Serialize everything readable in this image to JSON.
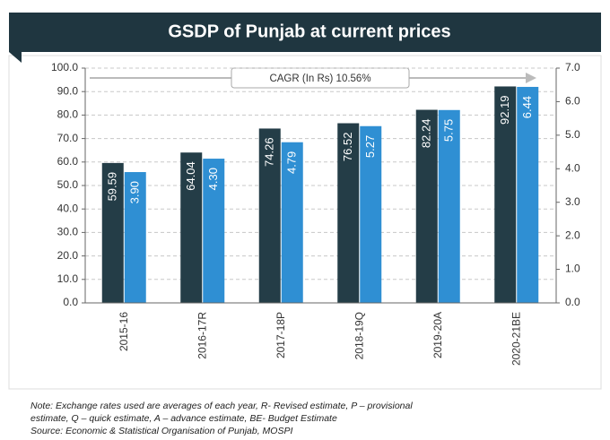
{
  "chart_data": {
    "type": "bar",
    "title": "GSDP of Punjab at current prices",
    "categories": [
      "2015-16",
      "2016-17R",
      "2017-18P",
      "2018-19Q",
      "2019-20A",
      "2020-21BE"
    ],
    "series": [
      {
        "color": "#243d47",
        "values": [
          59.59,
          64.04,
          74.26,
          76.52,
          82.24,
          92.19
        ]
      },
      {
        "color": "#2f8fd3",
        "axis": "y2",
        "values": [
          3.9,
          4.3,
          4.79,
          5.27,
          5.75,
          6.44
        ],
        "value_labels": [
          "3.90",
          "4.30",
          "4.79",
          "5.27",
          "5.75",
          "6.44"
        ]
      }
    ],
    "ylim": [
      0,
      100
    ],
    "yticks": [
      {
        "value": 0,
        "label": "0.0"
      },
      {
        "value": 10,
        "label": "10.0"
      },
      {
        "value": 20,
        "label": "20.0"
      },
      {
        "value": 30,
        "label": "30.0"
      },
      {
        "value": 40,
        "label": "40.0"
      },
      {
        "value": 50,
        "label": "50.0"
      },
      {
        "value": 60,
        "label": "60.0"
      },
      {
        "value": 70,
        "label": "70.0"
      },
      {
        "value": 80,
        "label": "80.0"
      },
      {
        "value": 90,
        "label": "90.0"
      },
      {
        "value": 100,
        "label": "100.0"
      }
    ],
    "y2lim": [
      0,
      7
    ],
    "y2ticks": [
      {
        "value": 0,
        "label": "0.0"
      },
      {
        "value": 1,
        "label": "1.0"
      },
      {
        "value": 2,
        "label": "2.0"
      },
      {
        "value": 3,
        "label": "3.0"
      },
      {
        "value": 4,
        "label": "4.0"
      },
      {
        "value": 5,
        "label": "5.0"
      },
      {
        "value": 6,
        "label": "6.0"
      },
      {
        "value": 7,
        "label": "7.0"
      }
    ],
    "grid": true,
    "annotation": "CAGR (In Rs) 10.56%",
    "note": "Note: Exchange rates used are averages of each year, R- Revised estimate, P – provisional",
    "note2": "estimate, Q – quick estimate, A – advance estimate, BE- Budget Estimate",
    "source": "Source: Economic & Statistical Organisation of Punjab, MOSPI"
  }
}
